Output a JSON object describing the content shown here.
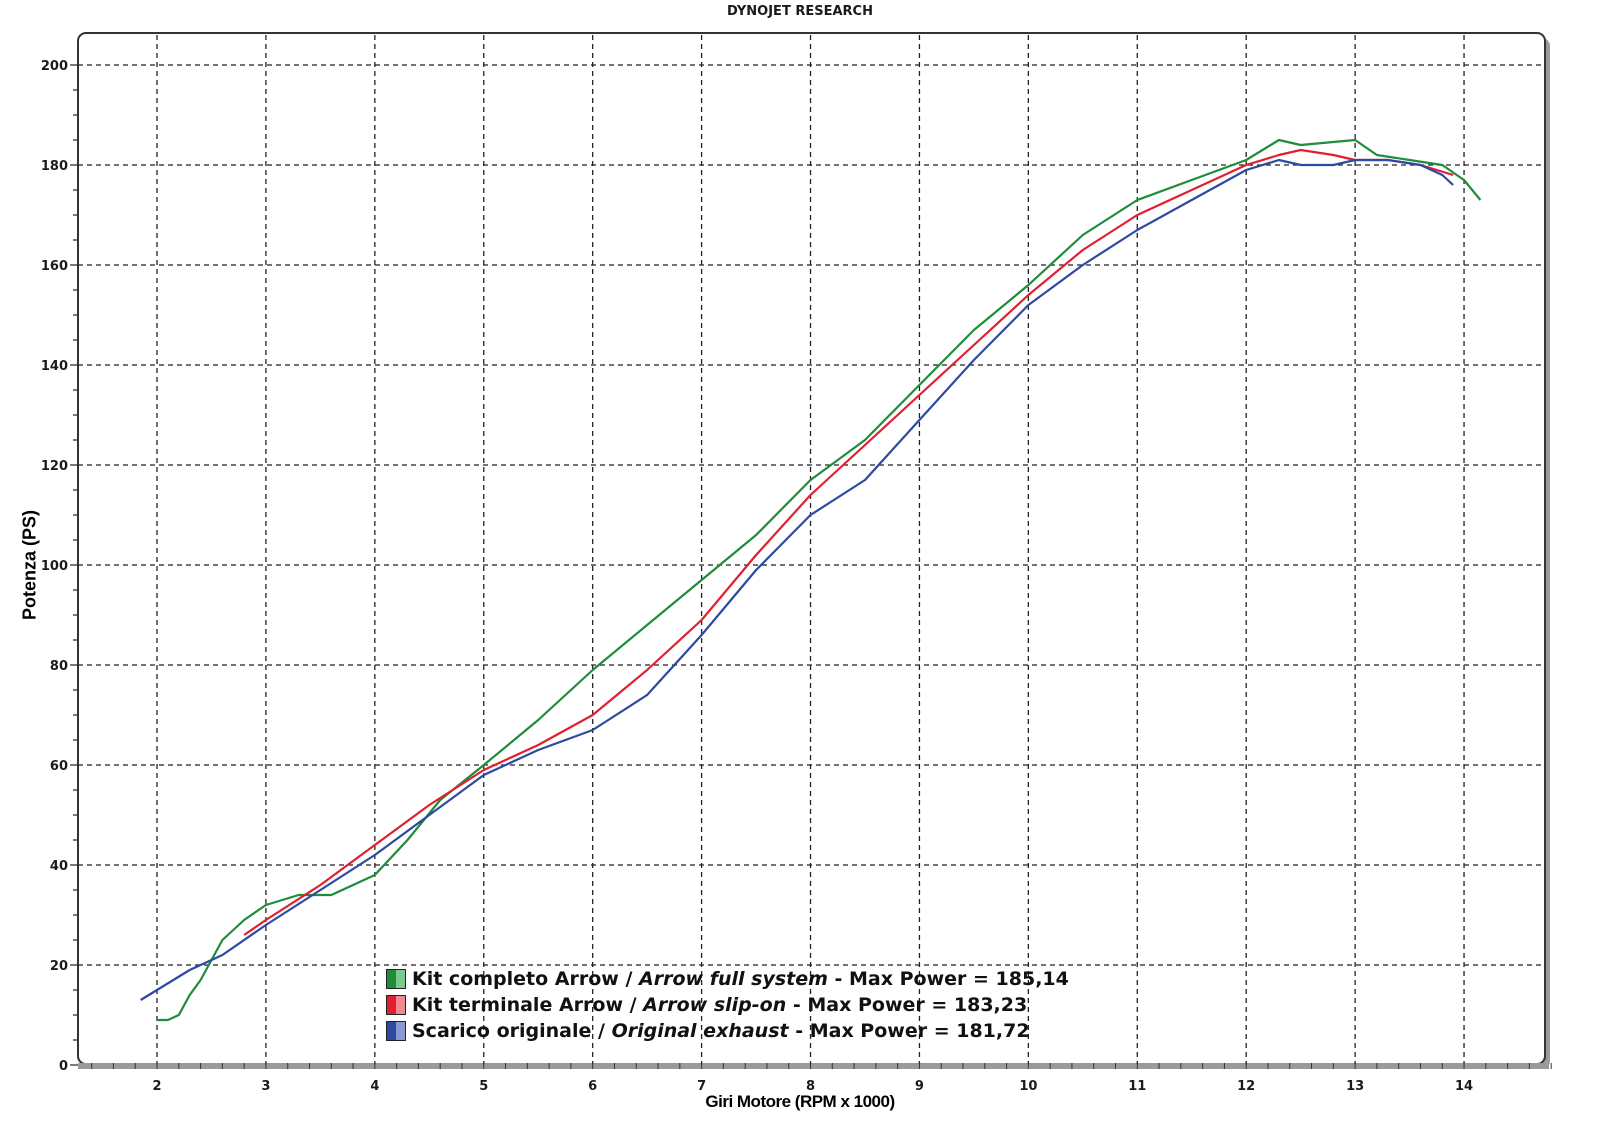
{
  "header": {
    "title": "DYNOJET RESEARCH"
  },
  "axes": {
    "ylabel": "Potenza (PS)",
    "xlabel": "Giri Motore (RPM x 1000)"
  },
  "legend": [
    {
      "name": "Kit completo Arrow",
      "sep": " / ",
      "name_en": "Arrow full system",
      "suffix": " - Max Power = 185,14",
      "color": "#1e8c3a"
    },
    {
      "name": "Kit terminale Arrow",
      "sep": " / ",
      "name_en": "Arrow slip-on",
      "suffix": " - Max Power = 183,23",
      "color": "#e02030"
    },
    {
      "name": "Scarico originale",
      "sep": " / ",
      "name_en": "Original exhaust",
      "suffix": " - Max Power = 181,72",
      "color": "#2e4aa0"
    }
  ],
  "chart_data": {
    "type": "line",
    "title": "DYNOJET RESEARCH",
    "xlabel": "Giri Motore (RPM x 1000)",
    "ylabel": "Potenza (PS)",
    "xlim": [
      1.3,
      14.8
    ],
    "ylim": [
      0,
      206
    ],
    "xticks": [
      2,
      3,
      4,
      5,
      6,
      7,
      8,
      9,
      10,
      11,
      12,
      13,
      14
    ],
    "yticks": [
      0,
      20,
      40,
      60,
      80,
      100,
      120,
      140,
      160,
      180,
      200
    ],
    "grid": true,
    "legend_position": "bottom-center inside",
    "series": [
      {
        "name": "Kit completo Arrow / Arrow full system - Max Power = 185,14",
        "color": "#1e8c3a",
        "x": [
          2.0,
          2.1,
          2.2,
          2.3,
          2.4,
          2.6,
          2.8,
          3.0,
          3.3,
          3.6,
          3.8,
          4.0,
          4.3,
          4.6,
          5.0,
          5.5,
          6.0,
          6.5,
          7.0,
          7.5,
          8.0,
          8.5,
          9.0,
          9.5,
          10.0,
          10.5,
          11.0,
          11.5,
          12.0,
          12.3,
          12.5,
          13.0,
          13.2,
          13.5,
          13.8,
          14.0,
          14.15
        ],
        "y": [
          9,
          9,
          10,
          14,
          17,
          25,
          29,
          32,
          34,
          34,
          36,
          38,
          45,
          53,
          60,
          69,
          79,
          88,
          97,
          106,
          117,
          125,
          136,
          147,
          156,
          166,
          173,
          177,
          181,
          185,
          184,
          185,
          182,
          181,
          180,
          177,
          173
        ]
      },
      {
        "name": "Kit terminale Arrow / Arrow slip-on - Max Power = 183,23",
        "color": "#e02030",
        "x": [
          2.8,
          3.0,
          3.5,
          4.0,
          4.5,
          5.0,
          5.5,
          6.0,
          6.5,
          7.0,
          7.5,
          8.0,
          8.5,
          9.0,
          9.5,
          10.0,
          10.5,
          11.0,
          11.5,
          12.0,
          12.3,
          12.5,
          12.8,
          13.0,
          13.3,
          13.6,
          13.9
        ],
        "y": [
          26,
          29,
          36,
          44,
          52,
          59,
          64,
          70,
          79,
          89,
          102,
          114,
          124,
          134,
          144,
          154,
          163,
          170,
          175,
          180,
          182,
          183,
          182,
          181,
          181,
          180,
          178
        ]
      },
      {
        "name": "Scarico originale / Original exhaust - Max Power = 181,72",
        "color": "#2e4aa0",
        "x": [
          1.85,
          2.0,
          2.3,
          2.6,
          3.0,
          3.5,
          4.0,
          4.5,
          5.0,
          5.5,
          6.0,
          6.5,
          7.0,
          7.5,
          8.0,
          8.5,
          9.0,
          9.5,
          10.0,
          10.5,
          11.0,
          11.5,
          12.0,
          12.3,
          12.5,
          12.8,
          13.0,
          13.3,
          13.6,
          13.8,
          13.9
        ],
        "y": [
          13,
          15,
          19,
          22,
          28,
          35,
          42,
          50,
          58,
          63,
          67,
          74,
          86,
          99,
          110,
          117,
          129,
          141,
          152,
          160,
          167,
          173,
          179,
          181,
          180,
          180,
          181,
          181,
          180,
          178,
          176
        ]
      }
    ]
  }
}
